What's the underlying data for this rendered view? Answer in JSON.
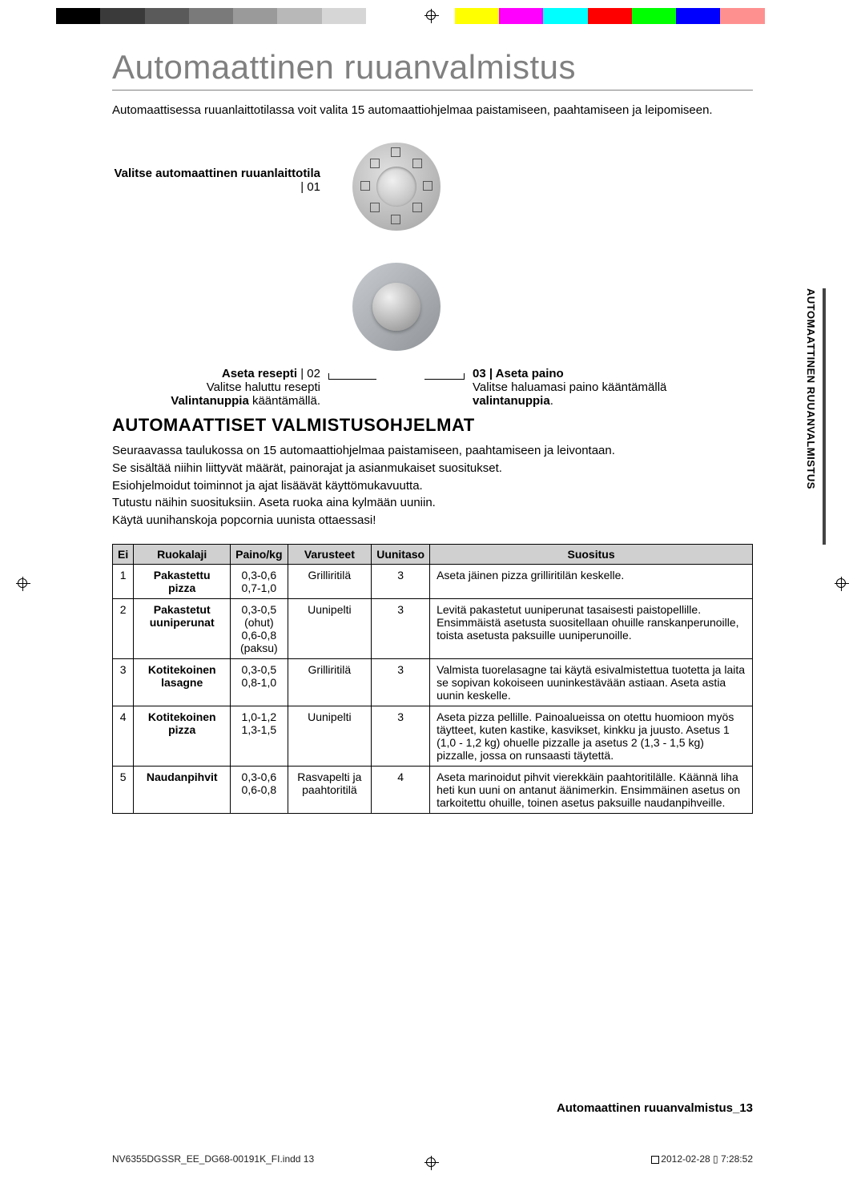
{
  "colorbar": {
    "left": [
      "#000000",
      "#3a3a3a",
      "#5a5a5a",
      "#7a7a7a",
      "#9a9a9a",
      "#b8b8b8",
      "#d6d6d6"
    ],
    "right": [
      "#ffff00",
      "#ff00ff",
      "#00ffff",
      "#ff0000",
      "#00ff00",
      "#0000ff",
      "#ff9090",
      "#ffffff"
    ]
  },
  "title": "Automaattinen ruuanvalmistus",
  "intro": "Automaattisessa ruuanlaittotilassa voit valita 15 automaattiohjelmaa paistamiseen, paahtamiseen ja leipomiseen.",
  "step1_label_bold": "Valitse automaattinen ruuanlaittotila",
  "step1_num": " | 01",
  "step2_label_bold": "Aseta resepti",
  "step2_num": " | 02",
  "step2_desc_pre": "Valitse haluttu resepti ",
  "step2_desc_bold": "Valintanuppia",
  "step2_desc_post": " kääntämällä.",
  "step3_num": "03 | ",
  "step3_label_bold": "Aseta paino",
  "step3_desc_pre": "Valitse haluamasi paino kääntämällä ",
  "step3_desc_bold": "valintanuppia",
  "step3_desc_post": ".",
  "side_text": "AUTOMAATTINEN RUUANVALMISTUS",
  "h2": "AUTOMAATTISET VALMISTUSOHJELMAT",
  "notes": [
    "Seuraavassa taulukossa on 15 automaattiohjelmaa paistamiseen, paahtamiseen ja leivontaan.",
    "Se sisältää niihin liittyvät määrät, painorajat ja asianmukaiset suositukset.",
    "Esiohjelmoidut toiminnot ja ajat lisäävät käyttömukavuutta.",
    "Tutustu näihin suosituksiin. Aseta ruoka aina kylmään uuniin.",
    "Käytä uunihanskoja popcornia uunista ottaessasi!"
  ],
  "headers": [
    "Ei",
    "Ruokalaji",
    "Paino/kg",
    "Varusteet",
    "Uunitaso",
    "Suositus"
  ],
  "rows": [
    {
      "n": "1",
      "dish": "Pakastettu pizza",
      "w": "0,3-0,6\n0,7-1,0",
      "acc": "Grilliritilä",
      "lvl": "3",
      "rec": "Aseta jäinen pizza grilliritilän keskelle."
    },
    {
      "n": "2",
      "dish": "Pakastetut uuniperunat",
      "w": "0,3-0,5\n(ohut)\n0,6-0,8\n(paksu)",
      "acc": "Uunipelti",
      "lvl": "3",
      "rec": "Levitä pakastetut uuniperunat tasaisesti paistopellille. Ensimmäistä asetusta suositellaan ohuille ranskanperunoille, toista asetusta paksuille uuniperunoille."
    },
    {
      "n": "3",
      "dish": "Kotitekoinen lasagne",
      "w": "0,3-0,5\n0,8-1,0",
      "acc": "Grilliritilä",
      "lvl": "3",
      "rec": "Valmista tuorelasagne tai käytä esivalmistettua tuotetta ja laita se sopivan kokoiseen uuninkestävään astiaan. Aseta astia uunin keskelle."
    },
    {
      "n": "4",
      "dish": "Kotitekoinen pizza",
      "w": "1,0-1,2\n1,3-1,5",
      "acc": "Uunipelti",
      "lvl": "3",
      "rec": "Aseta pizza pellille. Painoalueissa on otettu huomioon myös täytteet, kuten kastike, kasvikset, kinkku ja juusto. Asetus 1 (1,0 - 1,2 kg) ohuelle pizzalle ja asetus 2 (1,3 - 1,5 kg) pizzalle, jossa on runsaasti täytettä."
    },
    {
      "n": "5",
      "dish": "Naudanpihvit",
      "w": "0,3-0,6\n0,6-0,8",
      "acc": "Rasvapelti ja paahtoritilä",
      "lvl": "4",
      "rec": "Aseta marinoidut pihvit vierekkäin paahtoritilälle. Käännä liha heti kun uuni on antanut äänimerkin. Ensimmäinen asetus on tarkoitettu ohuille, toinen asetus paksuille naudanpihveille."
    }
  ],
  "page_footer": "Automaattinen ruuanvalmistus_13",
  "doc_left": "NV6355DGSSR_EE_DG68-00191K_FI.indd   13",
  "doc_right": "2012-02-28   ▯ 7:28:52"
}
